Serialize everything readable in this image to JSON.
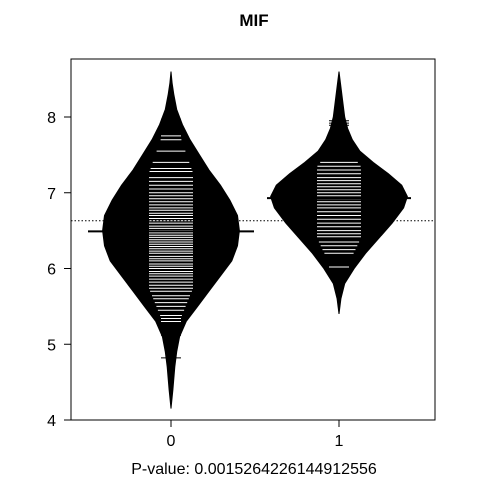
{
  "chart_data": {
    "type": "beanplot",
    "title": "MIF",
    "xlabel": "P-value: 0.0015264226144912556",
    "ylabel": "",
    "categories": [
      "0",
      "1"
    ],
    "ylim": [
      4,
      8.65
    ],
    "yticks": [
      4,
      5,
      6,
      7,
      8
    ],
    "overall_mean": 6.63,
    "grid": false,
    "legend": "none",
    "series": [
      {
        "group": "0",
        "mean": 6.49,
        "density": [
          [
            4.15,
            0.0
          ],
          [
            4.4,
            0.01
          ],
          [
            4.7,
            0.02
          ],
          [
            4.9,
            0.03
          ],
          [
            5.1,
            0.045
          ],
          [
            5.3,
            0.08
          ],
          [
            5.5,
            0.14
          ],
          [
            5.7,
            0.2
          ],
          [
            5.9,
            0.26
          ],
          [
            6.1,
            0.32
          ],
          [
            6.3,
            0.35
          ],
          [
            6.5,
            0.36
          ],
          [
            6.7,
            0.35
          ],
          [
            6.9,
            0.31
          ],
          [
            7.1,
            0.26
          ],
          [
            7.3,
            0.2
          ],
          [
            7.5,
            0.15
          ],
          [
            7.7,
            0.1
          ],
          [
            7.9,
            0.06
          ],
          [
            8.1,
            0.03
          ],
          [
            8.3,
            0.015
          ],
          [
            8.45,
            0.006
          ],
          [
            8.6,
            0.0
          ]
        ],
        "observations": [
          4.82,
          5.12,
          5.3,
          5.34,
          5.38,
          5.45,
          5.5,
          5.55,
          5.6,
          5.64,
          5.7,
          5.74,
          5.78,
          5.82,
          5.86,
          5.9,
          5.93,
          5.96,
          6.0,
          6.03,
          6.06,
          6.1,
          6.13,
          6.16,
          6.2,
          6.23,
          6.26,
          6.29,
          6.32,
          6.35,
          6.38,
          6.41,
          6.44,
          6.47,
          6.5,
          6.53,
          6.56,
          6.6,
          6.63,
          6.66,
          6.7,
          6.73,
          6.77,
          6.8,
          6.84,
          6.88,
          6.92,
          6.96,
          7.0,
          7.05,
          7.1,
          7.15,
          7.2,
          7.28,
          7.32,
          7.4,
          7.55,
          7.7,
          7.75,
          7.93,
          7.97
        ]
      },
      {
        "group": "1",
        "mean": 6.93,
        "density": [
          [
            5.4,
            0.0
          ],
          [
            5.6,
            0.01
          ],
          [
            5.8,
            0.03
          ],
          [
            6.0,
            0.08
          ],
          [
            6.2,
            0.14
          ],
          [
            6.4,
            0.21
          ],
          [
            6.6,
            0.28
          ],
          [
            6.8,
            0.34
          ],
          [
            6.95,
            0.36
          ],
          [
            7.1,
            0.33
          ],
          [
            7.25,
            0.26
          ],
          [
            7.4,
            0.18
          ],
          [
            7.55,
            0.11
          ],
          [
            7.7,
            0.07
          ],
          [
            7.85,
            0.045
          ],
          [
            8.0,
            0.03
          ],
          [
            8.2,
            0.02
          ],
          [
            8.4,
            0.01
          ],
          [
            8.6,
            0.0
          ]
        ],
        "observations": [
          6.02,
          6.2,
          6.25,
          6.3,
          6.35,
          6.42,
          6.46,
          6.5,
          6.55,
          6.6,
          6.65,
          6.7,
          6.75,
          6.8,
          6.84,
          6.88,
          6.92,
          6.96,
          7.0,
          7.04,
          7.08,
          7.12,
          7.16,
          7.2,
          7.25,
          7.3,
          7.35,
          7.4,
          7.89,
          7.92,
          7.95
        ]
      }
    ]
  }
}
